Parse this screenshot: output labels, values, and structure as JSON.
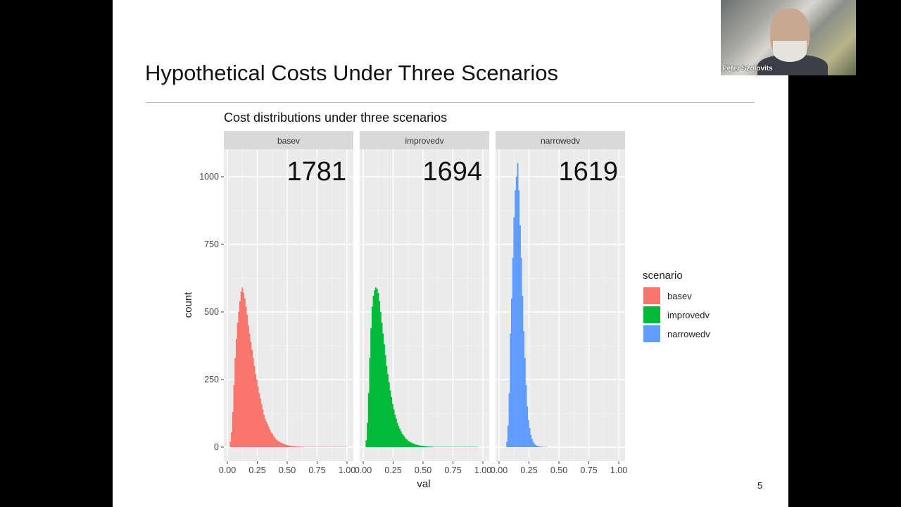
{
  "slide": {
    "title": "Hypothetical Costs Under Three Scenarios",
    "page_number": "5"
  },
  "video": {
    "participant_name": "Peter Szolovits"
  },
  "chart_data": {
    "type": "histogram",
    "title": "Cost distributions under three scenarios",
    "xlabel": "val",
    "ylabel": "count",
    "xlim": [
      0,
      1
    ],
    "ylim": [
      0,
      1100
    ],
    "x_ticks": [
      "0.00",
      "0.25",
      "0.50",
      "0.75",
      "1.00"
    ],
    "y_ticks": [
      "0",
      "250",
      "500",
      "750",
      "1000"
    ],
    "grid": true,
    "bin_start": 0.0,
    "bin_width": 0.01,
    "legend": {
      "title": "scenario",
      "placement": "right"
    },
    "panels": [
      {
        "name": "basev",
        "annotation": "1781",
        "color": "#F8766D",
        "values": [
          0,
          0,
          20,
          55,
          130,
          230,
          330,
          400,
          460,
          500,
          540,
          575,
          590,
          570,
          550,
          520,
          490,
          450,
          420,
          390,
          360,
          330,
          300,
          270,
          250,
          225,
          200,
          180,
          160,
          140,
          120,
          105,
          95,
          85,
          75,
          65,
          55,
          50,
          42,
          36,
          30,
          26,
          22,
          20,
          17,
          15,
          13,
          11,
          10,
          8,
          7,
          6,
          5,
          5,
          4,
          4,
          3,
          3,
          2,
          2,
          2,
          2,
          1,
          1,
          1,
          1,
          1,
          1,
          1,
          1,
          1,
          1,
          1,
          1,
          1,
          1,
          1,
          1,
          1,
          1,
          1,
          1,
          1,
          1,
          1,
          1,
          1,
          1,
          1,
          1,
          1,
          1,
          1,
          1,
          1,
          1,
          1,
          1,
          1,
          1
        ]
      },
      {
        "name": "improvedv",
        "annotation": "1694",
        "color": "#00BA38",
        "values": [
          0,
          0,
          25,
          90,
          200,
          330,
          440,
          520,
          560,
          580,
          590,
          585,
          570,
          540,
          500,
          460,
          420,
          380,
          340,
          300,
          270,
          240,
          210,
          185,
          160,
          140,
          120,
          105,
          90,
          78,
          68,
          58,
          50,
          44,
          38,
          32,
          28,
          24,
          21,
          18,
          16,
          14,
          12,
          10,
          9,
          8,
          7,
          6,
          5,
          5,
          4,
          4,
          3,
          3,
          2,
          2,
          2,
          2,
          1,
          1,
          1,
          1,
          1,
          1,
          1,
          1,
          1,
          1,
          1,
          1,
          1,
          1,
          1,
          1,
          1,
          1,
          1,
          1,
          1,
          1,
          1,
          1,
          1,
          1,
          1,
          1,
          1,
          1,
          1,
          1,
          1,
          1,
          1,
          1,
          1,
          1,
          0,
          0,
          0,
          0
        ]
      },
      {
        "name": "narrowedv",
        "annotation": "1619",
        "color": "#619CFF",
        "values": [
          0,
          0,
          0,
          0,
          0,
          0,
          20,
          80,
          200,
          420,
          550,
          700,
          850,
          950,
          1000,
          1050,
          950,
          820,
          700,
          560,
          430,
          330,
          230,
          150,
          100,
          70,
          45,
          30,
          20,
          12,
          8,
          5,
          4,
          3,
          2,
          2,
          1,
          1,
          1,
          1,
          0,
          0,
          0,
          0,
          0,
          0,
          0,
          0,
          0,
          0,
          0,
          0,
          0,
          0,
          0,
          0,
          0,
          0,
          0,
          0,
          0,
          0,
          0,
          0,
          0,
          0,
          0,
          0,
          0,
          0,
          0,
          0,
          0,
          0,
          0,
          0,
          0,
          0,
          0,
          0,
          0,
          0,
          0,
          0,
          0,
          0,
          0,
          0,
          0,
          0,
          0,
          0,
          0,
          0,
          0,
          0,
          0,
          0,
          0,
          0
        ]
      }
    ]
  }
}
